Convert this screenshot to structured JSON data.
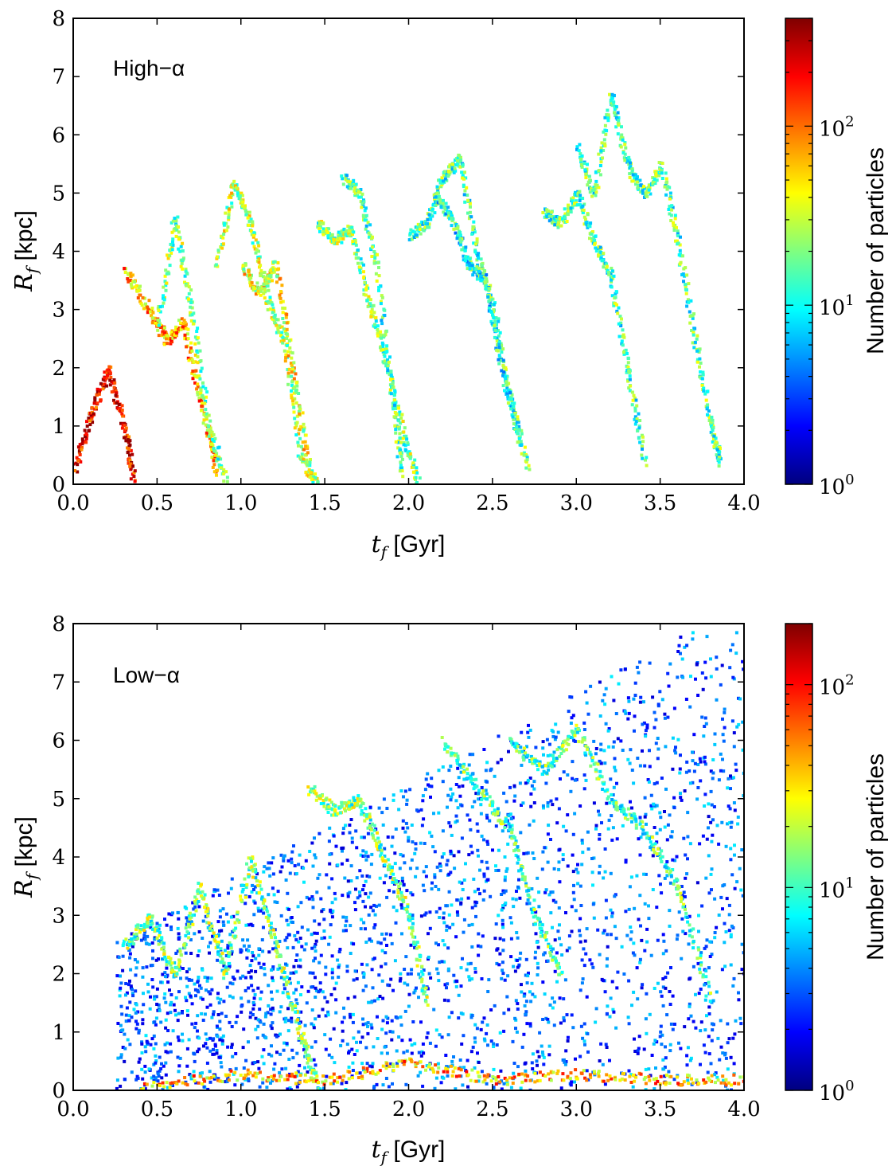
{
  "chart_data": [
    {
      "type": "heatmap",
      "panel_label": "High−α",
      "xlabel": "t_f [Gyr]",
      "ylabel": "R_f [kpc]",
      "xlim": [
        0.0,
        4.0
      ],
      "ylim": [
        0,
        8
      ],
      "x_ticks": [
        "0.0",
        "0.5",
        "1.0",
        "1.5",
        "2.0",
        "2.5",
        "3.0",
        "3.5",
        "4.0"
      ],
      "y_ticks": [
        "0",
        "1",
        "2",
        "3",
        "4",
        "5",
        "6",
        "7",
        "8"
      ],
      "colorbar": {
        "label": "Number of particles",
        "scale": "log",
        "range": [
          1,
          400
        ],
        "tick_labels": [
          "10^0",
          "10^1",
          "10^2"
        ],
        "colormap": "jet"
      },
      "tracks": [
        {
          "name": "",
          "points": [
            [
              0.0,
              0.3
            ],
            [
              0.1,
              1.2
            ],
            [
              0.2,
              2.0
            ],
            [
              0.3,
              1.0
            ],
            [
              0.35,
              0.1
            ]
          ],
          "level": 0.9
        },
        {
          "name": "",
          "points": [
            [
              0.3,
              3.7
            ],
            [
              0.45,
              3.0
            ],
            [
              0.55,
              2.5
            ],
            [
              0.65,
              2.8
            ],
            [
              0.75,
              1.5
            ],
            [
              0.85,
              0.2
            ]
          ],
          "level": 0.7
        },
        {
          "name": "",
          "points": [
            [
              0.5,
              2.8
            ],
            [
              0.6,
              4.6
            ],
            [
              0.7,
              3.0
            ],
            [
              0.8,
              1.0
            ],
            [
              0.9,
              0.1
            ]
          ],
          "level": 0.5
        },
        {
          "name": "",
          "points": [
            [
              0.85,
              3.8
            ],
            [
              0.95,
              5.2
            ],
            [
              1.05,
              4.5
            ],
            [
              1.15,
              3.2
            ],
            [
              1.25,
              2.5
            ],
            [
              1.35,
              0.5
            ],
            [
              1.45,
              0.0
            ]
          ],
          "level": 0.55
        },
        {
          "name": "",
          "points": [
            [
              1.0,
              3.8
            ],
            [
              1.1,
              3.3
            ],
            [
              1.2,
              3.8
            ],
            [
              1.3,
              2.0
            ],
            [
              1.4,
              0.3
            ]
          ],
          "level": 0.6
        },
        {
          "name": "",
          "points": [
            [
              1.45,
              4.5
            ],
            [
              1.55,
              4.2
            ],
            [
              1.65,
              4.4
            ],
            [
              1.75,
              3.2
            ],
            [
              1.85,
              2.2
            ],
            [
              1.95,
              1.0
            ],
            [
              2.05,
              0.0
            ]
          ],
          "level": 0.5
        },
        {
          "name": "",
          "points": [
            [
              1.6,
              5.3
            ],
            [
              1.7,
              5.0
            ],
            [
              1.8,
              3.8
            ],
            [
              1.9,
              1.5
            ],
            [
              1.95,
              0.2
            ]
          ],
          "level": 0.45
        },
        {
          "name": "",
          "points": [
            [
              2.0,
              4.3
            ],
            [
              2.1,
              4.5
            ],
            [
              2.2,
              5.3
            ],
            [
              2.3,
              5.6
            ],
            [
              2.4,
              4.0
            ],
            [
              2.5,
              3.0
            ],
            [
              2.6,
              1.5
            ],
            [
              2.7,
              0.3
            ]
          ],
          "level": 0.45
        },
        {
          "name": "",
          "points": [
            [
              2.15,
              5.0
            ],
            [
              2.25,
              4.6
            ],
            [
              2.35,
              3.8
            ],
            [
              2.45,
              3.5
            ],
            [
              2.55,
              2.0
            ],
            [
              2.65,
              0.8
            ]
          ],
          "level": 0.4
        },
        {
          "name": "",
          "points": [
            [
              2.8,
              4.7
            ],
            [
              2.9,
              4.5
            ],
            [
              3.0,
              5.0
            ],
            [
              3.1,
              4.2
            ],
            [
              3.2,
              3.6
            ],
            [
              3.3,
              2.0
            ],
            [
              3.4,
              0.4
            ]
          ],
          "level": 0.45
        },
        {
          "name": "",
          "points": [
            [
              3.0,
              5.8
            ],
            [
              3.1,
              5.0
            ],
            [
              3.2,
              6.7
            ],
            [
              3.3,
              5.5
            ],
            [
              3.4,
              5.0
            ],
            [
              3.5,
              5.5
            ],
            [
              3.6,
              4.2
            ],
            [
              3.7,
              2.5
            ],
            [
              3.8,
              1.0
            ],
            [
              3.85,
              0.4
            ]
          ],
          "level": 0.45
        }
      ]
    },
    {
      "type": "heatmap",
      "panel_label": "Low−α",
      "xlabel": "t_f [Gyr]",
      "ylabel": "R_f [kpc]",
      "xlim": [
        0.0,
        4.0
      ],
      "ylim": [
        0,
        8
      ],
      "x_ticks": [
        "0.0",
        "0.5",
        "1.0",
        "1.5",
        "2.0",
        "2.5",
        "3.0",
        "3.5",
        "4.0"
      ],
      "y_ticks": [
        "0",
        "1",
        "2",
        "3",
        "4",
        "5",
        "6",
        "7",
        "8"
      ],
      "colorbar": {
        "label": "Number of particles",
        "scale": "log",
        "range": [
          1,
          200
        ],
        "tick_labels": [
          "10^0",
          "10^1",
          "10^2"
        ],
        "colormap": "jet"
      },
      "tracks": [
        {
          "name": "",
          "points": [
            [
              0.3,
              2.5
            ],
            [
              0.45,
              3.0
            ],
            [
              0.6,
              2.0
            ],
            [
              0.75,
              3.5
            ],
            [
              0.9,
              2.0
            ],
            [
              1.05,
              4.0
            ],
            [
              1.2,
              2.5
            ],
            [
              1.35,
              1.0
            ],
            [
              1.45,
              0.1
            ]
          ],
          "level": 0.5
        },
        {
          "name": "",
          "points": [
            [
              1.4,
              5.2
            ],
            [
              1.55,
              4.8
            ],
            [
              1.7,
              5.0
            ],
            [
              1.85,
              4.0
            ],
            [
              2.0,
              3.0
            ],
            [
              2.1,
              1.5
            ]
          ],
          "level": 0.5
        },
        {
          "name": "",
          "points": [
            [
              2.2,
              6.0
            ],
            [
              2.4,
              5.2
            ],
            [
              2.6,
              4.5
            ],
            [
              2.75,
              3.0
            ],
            [
              2.9,
              2.0
            ]
          ],
          "level": 0.45
        },
        {
          "name": "",
          "points": [
            [
              2.6,
              6.0
            ],
            [
              2.8,
              5.5
            ],
            [
              3.0,
              6.2
            ],
            [
              3.2,
              5.0
            ],
            [
              3.4,
              4.5
            ],
            [
              3.6,
              3.5
            ],
            [
              3.8,
              1.5
            ]
          ],
          "level": 0.45
        },
        {
          "name": "",
          "points": [
            [
              0.4,
              0.1
            ],
            [
              1.0,
              0.3
            ],
            [
              1.5,
              0.2
            ],
            [
              2.0,
              0.5
            ],
            [
              2.5,
              0.2
            ],
            [
              3.0,
              0.3
            ],
            [
              3.5,
              0.2
            ],
            [
              4.0,
              0.2
            ]
          ],
          "level": 0.7
        }
      ]
    }
  ]
}
